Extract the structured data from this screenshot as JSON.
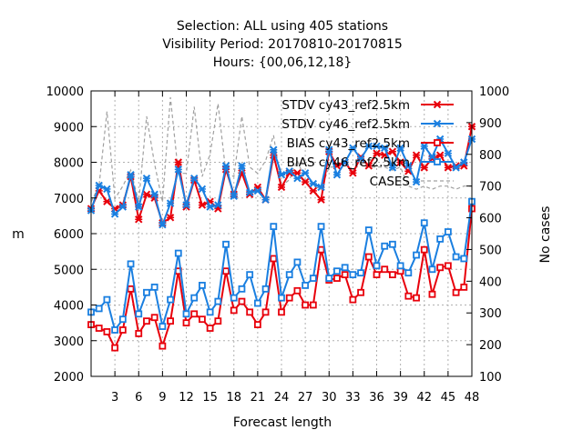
{
  "chart_data": {
    "type": "line",
    "title_lines": [
      "Selection: ALL using   405 stations",
      "Visibility   Period: 20170810-20170815",
      "Hours: {00,06,12,18}"
    ],
    "xlabel": "Forecast length",
    "ylabel": "m",
    "y2label": "No cases",
    "xlim": [
      0,
      48
    ],
    "ylim": [
      2000,
      10000
    ],
    "y2lim": [
      100,
      1000
    ],
    "xticks": [
      3,
      6,
      9,
      12,
      15,
      18,
      21,
      24,
      27,
      30,
      33,
      36,
      39,
      42,
      45,
      48
    ],
    "yticks": [
      2000,
      3000,
      4000,
      5000,
      6000,
      7000,
      8000,
      9000,
      10000
    ],
    "y2ticks": [
      100,
      200,
      300,
      400,
      500,
      600,
      700,
      800,
      900,
      1000
    ],
    "grid": true,
    "legend_position": "top-right",
    "x": [
      0,
      1,
      2,
      3,
      4,
      5,
      6,
      7,
      8,
      9,
      10,
      11,
      12,
      13,
      14,
      15,
      16,
      17,
      18,
      19,
      20,
      21,
      22,
      23,
      24,
      25,
      26,
      27,
      28,
      29,
      30,
      31,
      32,
      33,
      34,
      35,
      36,
      37,
      38,
      39,
      40,
      41,
      42,
      43,
      44,
      45,
      46,
      47,
      48
    ],
    "series": [
      {
        "name": "STDV cy43_ref2.5km",
        "axis": "y",
        "color": "#e8000b",
        "marker": "x",
        "values": [
          6700,
          7200,
          6900,
          6700,
          6800,
          7600,
          6400,
          7100,
          7000,
          6300,
          6450,
          8000,
          6750,
          7500,
          6800,
          6900,
          6700,
          7800,
          7100,
          7700,
          7100,
          7300,
          6950,
          8200,
          7300,
          7700,
          7700,
          7450,
          7200,
          6950,
          8300,
          7900,
          8000,
          7700,
          8150,
          7900,
          8250,
          8200,
          8300,
          8000,
          7750,
          8200,
          7850,
          8100,
          8200,
          7850,
          7900,
          7900,
          9000
        ]
      },
      {
        "name": "STDV cy46_ref2.5km",
        "axis": "y",
        "color": "#1a7fe0",
        "marker": "x",
        "values": [
          6650,
          7350,
          7250,
          6550,
          6750,
          7650,
          6750,
          7550,
          7100,
          6250,
          6850,
          7800,
          6800,
          7550,
          7250,
          6750,
          6800,
          7900,
          7050,
          7900,
          7150,
          7200,
          6950,
          8350,
          7650,
          7750,
          7550,
          7700,
          7400,
          7300,
          8350,
          7650,
          8000,
          8400,
          8100,
          8450,
          8450,
          8400,
          7850,
          8400,
          7900,
          7450,
          8450,
          8150,
          8650,
          8250,
          7850,
          8000,
          8650
        ]
      },
      {
        "name": "BIAS cy43_ref2.5km",
        "axis": "y",
        "color": "#e8000b",
        "marker": "square",
        "values": [
          3450,
          3350,
          3250,
          2800,
          3300,
          4450,
          3200,
          3550,
          3650,
          2850,
          3550,
          4950,
          3500,
          3750,
          3600,
          3350,
          3550,
          4950,
          3850,
          4100,
          3800,
          3450,
          3800,
          5300,
          3800,
          4200,
          4400,
          4000,
          4000,
          5550,
          4700,
          4750,
          4850,
          4150,
          4350,
          5350,
          4850,
          5000,
          4850,
          4950,
          4250,
          4200,
          5550,
          4300,
          5050,
          5100,
          4350,
          4500,
          6700
        ]
      },
      {
        "name": "BIAS cy46_ref2.5km",
        "axis": "y",
        "color": "#1a7fe0",
        "marker": "square",
        "values": [
          3800,
          3900,
          4150,
          3300,
          3600,
          5150,
          3750,
          4350,
          4500,
          3400,
          4150,
          5450,
          3750,
          4200,
          4550,
          3800,
          4100,
          5700,
          4200,
          4450,
          4850,
          4050,
          4450,
          6200,
          4200,
          4850,
          5200,
          4550,
          4750,
          6200,
          4750,
          4950,
          5050,
          4850,
          4900,
          6100,
          5100,
          5650,
          5700,
          5100,
          4900,
          5400,
          6300,
          5000,
          5850,
          6050,
          5350,
          5300,
          6900
        ]
      },
      {
        "name": "CASES",
        "axis": "y2",
        "color": "#a0a0a0",
        "marker": "none",
        "values": [
          650,
          700,
          935,
          660,
          700,
          750,
          650,
          920,
          770,
          650,
          980,
          740,
          740,
          950,
          730,
          800,
          960,
          740,
          730,
          920,
          760,
          740,
          780,
          860,
          700,
          720,
          780,
          720,
          700,
          690,
          760,
          760,
          780,
          750,
          770,
          760,
          760,
          760,
          750,
          760,
          700,
          690,
          700,
          690,
          700,
          700,
          690,
          700,
          700
        ]
      }
    ]
  }
}
